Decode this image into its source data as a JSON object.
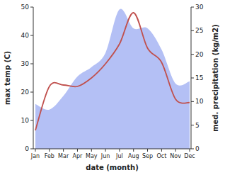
{
  "chart_data": {
    "type": "line",
    "x_label": "date (month)",
    "y_label": "max temp (C)",
    "y2_label": "med. precipitation (kg/m2)",
    "categories": [
      "Jan",
      "Feb",
      "Mar",
      "Apr",
      "May",
      "Jun",
      "Jul",
      "Aug",
      "Sep",
      "Oct",
      "Nov",
      "Dec"
    ],
    "series": [
      {
        "type": "area",
        "axis": "y2",
        "color": "#b4c0f5",
        "values": [
          9.5,
          8.3,
          11.2,
          15.3,
          17.3,
          20.3,
          29.5,
          25.5,
          25.5,
          21,
          13.8,
          14.3
        ]
      },
      {
        "type": "line",
        "color": "#c0504d",
        "values": [
          6.5,
          22,
          22.5,
          22,
          25,
          30,
          37,
          48,
          35.5,
          30.5,
          17.5,
          16.3
        ]
      }
    ],
    "ylim": [
      0,
      50
    ],
    "yticks": [
      0,
      10,
      20,
      30,
      40,
      50
    ],
    "y2lim": [
      0,
      30
    ],
    "y2ticks": [
      0,
      5,
      10,
      15,
      20,
      25,
      30
    ],
    "grid": false
  }
}
